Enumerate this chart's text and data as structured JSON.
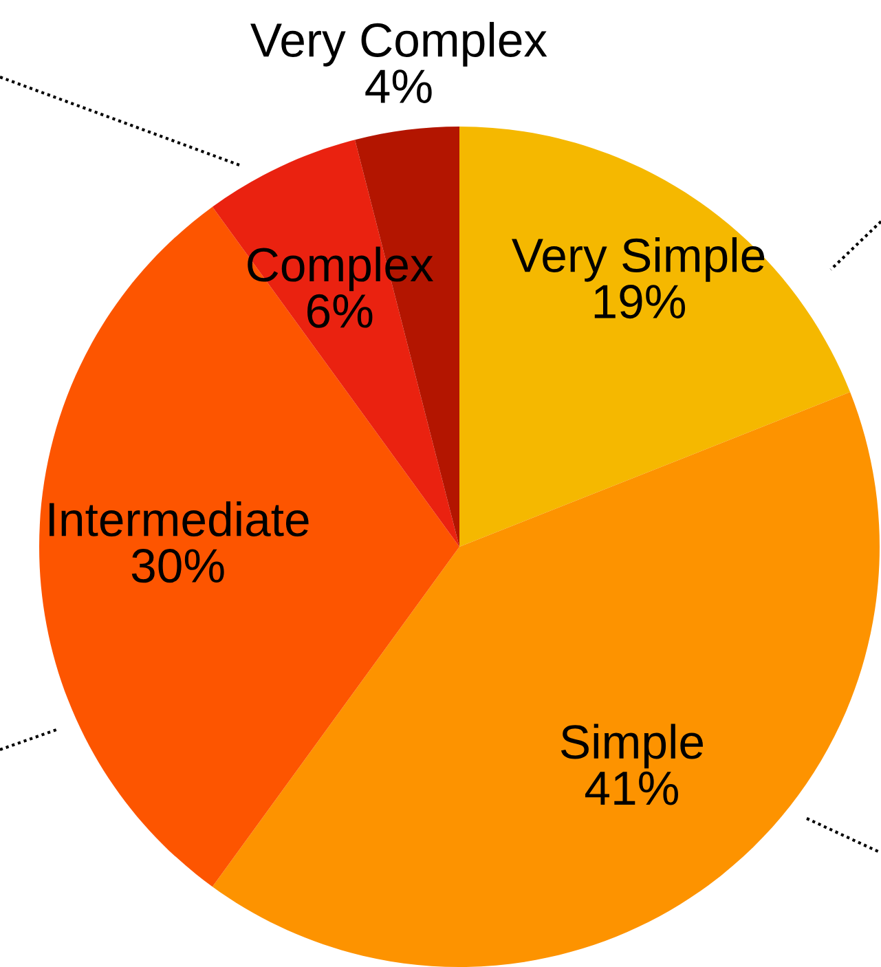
{
  "chart_data": {
    "type": "pie",
    "categories": [
      "Very Simple",
      "Simple",
      "Intermediate",
      "Complex",
      "Very Complex"
    ],
    "values": [
      19,
      41,
      30,
      6,
      4
    ],
    "value_labels": [
      "19%",
      "41%",
      "30%",
      "6%",
      "4%"
    ],
    "colors": [
      "#f5b800",
      "#fd9300",
      "#fd5500",
      "#ea2210",
      "#b31500"
    ]
  }
}
